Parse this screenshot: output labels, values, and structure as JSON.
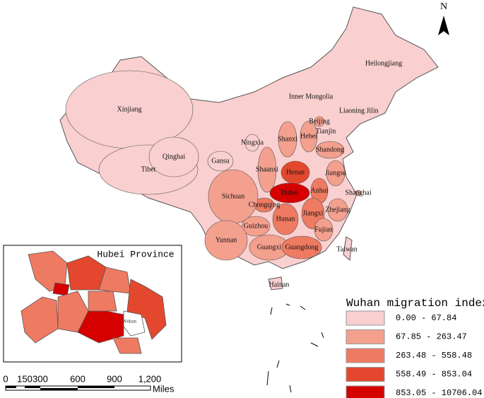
{
  "north": "N",
  "provinces": [
    {
      "label": "Xinjiang",
      "color": "#f9cfcf"
    },
    {
      "label": "Tibet",
      "color": "#f9cfcf"
    },
    {
      "label": "Qinghai",
      "color": "#f9cfcf"
    },
    {
      "label": "Gansu",
      "color": "#f9cfcf"
    },
    {
      "label": "Ningxia",
      "color": "#f9cfcf"
    },
    {
      "label": "Inner Mongolia",
      "color": "#f9cfcf"
    },
    {
      "label": "Heilongjiang",
      "color": "#f9cfcf"
    },
    {
      "label": "Jilin",
      "color": "#f9cfcf"
    },
    {
      "label": "Liaoning",
      "color": "#f9cfcf"
    },
    {
      "label": "Beijing",
      "color": "#f4a08e"
    },
    {
      "label": "Tianjin",
      "color": "#f9cfcf"
    },
    {
      "label": "Hebei",
      "color": "#f4a08e"
    },
    {
      "label": "Shanxi",
      "color": "#f4a08e"
    },
    {
      "label": "Shaanxi",
      "color": "#f4a08e"
    },
    {
      "label": "Shandong",
      "color": "#f4a08e"
    },
    {
      "label": "Henan",
      "color": "#e3482f"
    },
    {
      "label": "Hubei",
      "color": "#d50000"
    },
    {
      "label": "Anhui",
      "color": "#ef7a62"
    },
    {
      "label": "Jiangsu",
      "color": "#f4a08e"
    },
    {
      "label": "Shanghai",
      "color": "#f4a08e"
    },
    {
      "label": "Zhejiang",
      "color": "#f4a08e"
    },
    {
      "label": "Jiangxi",
      "color": "#ef7a62"
    },
    {
      "label": "Hunan",
      "color": "#ef7a62"
    },
    {
      "label": "Chongqing",
      "color": "#ef7a62"
    },
    {
      "label": "Sichuan",
      "color": "#f4a08e"
    },
    {
      "label": "Guizhou",
      "color": "#f4a08e"
    },
    {
      "label": "Yunnan",
      "color": "#f4a08e"
    },
    {
      "label": "Guangxi",
      "color": "#f4a08e"
    },
    {
      "label": "Guangdong",
      "color": "#ef7a62"
    },
    {
      "label": "Fujian",
      "color": "#f4a08e"
    },
    {
      "label": "Taiwan",
      "color": "#f9cfcf"
    },
    {
      "label": "Hainan",
      "color": "#f9cfcf"
    }
  ],
  "inset": {
    "title": "Hubei Province",
    "city": "Wuhan"
  },
  "legend": {
    "title": "Wuhan migration index",
    "items": [
      {
        "label": "0.00 - 67.84",
        "color": "#f9cfcf"
      },
      {
        "label": "67.85 - 263.47",
        "color": "#f4a08e"
      },
      {
        "label": "263.48 - 558.48",
        "color": "#ef7a62"
      },
      {
        "label": "558.49 - 853.04",
        "color": "#e3482f"
      },
      {
        "label": "853.05 - 10706.04",
        "color": "#d50000"
      }
    ]
  },
  "scale": {
    "ticks": [
      "0",
      "150",
      "300",
      "600",
      "900",
      "1,200"
    ],
    "unit": "Miles"
  }
}
